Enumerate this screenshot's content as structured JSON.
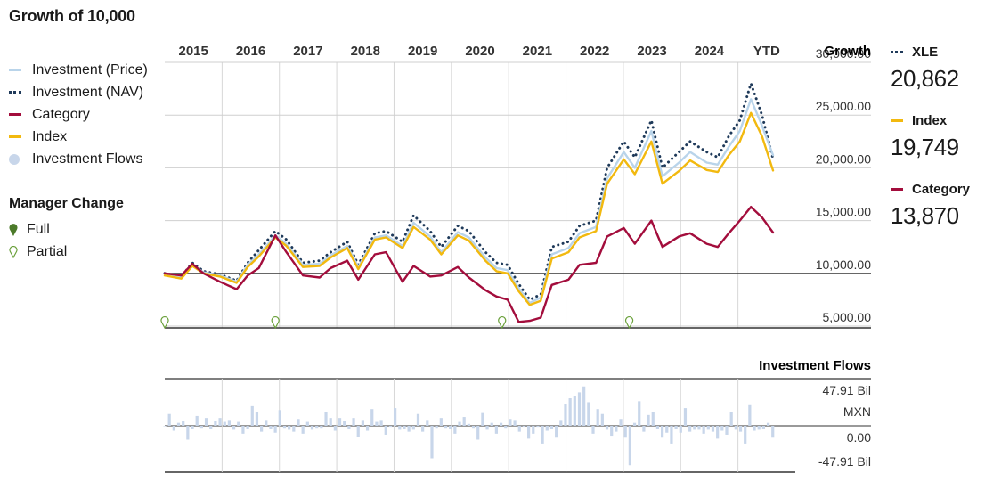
{
  "title": "Growth of 10,000",
  "legend": {
    "items": [
      {
        "label": "Investment (Price)",
        "style": "line",
        "color": "#b9d4ea"
      },
      {
        "label": "Investment (NAV)",
        "style": "dots",
        "color": "#1f3a5a"
      },
      {
        "label": "Category",
        "style": "line",
        "color": "#a30d3c"
      },
      {
        "label": "Index",
        "style": "line",
        "color": "#f2b90f"
      },
      {
        "label": "Investment Flows",
        "style": "circle",
        "color": "#c8d6ea"
      }
    ]
  },
  "manager_change": {
    "title": "Manager Change",
    "full_label": "Full",
    "partial_label": "Partial",
    "full_color": "#4c7a2a",
    "partial_color": "#6aa03a"
  },
  "right_legend": [
    {
      "name": "XLE",
      "value": "20,862",
      "style": "dots",
      "color": "#1f3a5a"
    },
    {
      "name": "Index",
      "value": "19,749",
      "style": "line",
      "color": "#f2b90f"
    },
    {
      "name": "Category",
      "value": "13,870",
      "style": "line",
      "color": "#a30d3c"
    }
  ],
  "chart_data": [
    {
      "type": "line",
      "title": "Growth",
      "x_range": [
        2014.0,
        2025.0
      ],
      "x_ticks": [
        "2015",
        "2016",
        "2017",
        "2018",
        "2019",
        "2020",
        "2021",
        "2022",
        "2023",
        "2024",
        "YTD"
      ],
      "y_ticks": [
        "30,000.00",
        "25,000.00",
        "20,000.00",
        "15,000.00",
        "10,000.00",
        "5,000.00"
      ],
      "y_tick_values": [
        30000,
        25000,
        20000,
        15000,
        10000,
        5000
      ],
      "ylim": [
        5000,
        30000
      ],
      "baseline": 10000,
      "grid": true,
      "x": [
        2014.0,
        2014.3,
        2014.5,
        2014.7,
        2015.0,
        2015.3,
        2015.5,
        2015.7,
        2016.0,
        2016.2,
        2016.5,
        2016.8,
        2017.0,
        2017.3,
        2017.5,
        2017.8,
        2018.0,
        2018.3,
        2018.5,
        2018.8,
        2019.0,
        2019.3,
        2019.5,
        2019.8,
        2020.0,
        2020.2,
        2020.4,
        2020.6,
        2020.8,
        2021.0,
        2021.3,
        2021.5,
        2021.8,
        2022.0,
        2022.3,
        2022.5,
        2022.8,
        2023.0,
        2023.3,
        2023.5,
        2023.8,
        2024.0,
        2024.2,
        2024.4,
        2024.6,
        2024.8,
        2025.0
      ],
      "series": [
        {
          "name": "Investment (NAV)",
          "color": "#1f3a5a",
          "style": "dots",
          "values": [
            10000,
            9700,
            11000,
            10200,
            9900,
            9300,
            11000,
            12200,
            14000,
            13200,
            11000,
            11200,
            12000,
            13000,
            10800,
            13800,
            14000,
            13000,
            15500,
            14000,
            12500,
            14500,
            14000,
            12000,
            11000,
            10800,
            9000,
            7500,
            8000,
            12500,
            13000,
            14500,
            15000,
            20000,
            22500,
            21000,
            24500,
            20000,
            21500,
            22500,
            21500,
            21000,
            23000,
            24500,
            28000,
            25000,
            20862
          ],
          "hover": false
        },
        {
          "name": "Investment (Price)",
          "color": "#b9d4ea",
          "style": "line",
          "values": [
            9900,
            9600,
            10800,
            10100,
            9800,
            9200,
            10800,
            11800,
            13600,
            12800,
            10800,
            10900,
            11700,
            12600,
            10600,
            13400,
            13600,
            12600,
            14800,
            13500,
            12000,
            13900,
            13400,
            11500,
            10500,
            10300,
            8600,
            7200,
            7700,
            11800,
            12400,
            13800,
            14400,
            19000,
            21500,
            20000,
            23500,
            19200,
            20500,
            21500,
            20500,
            20300,
            22000,
            23500,
            26500,
            24000,
            21200
          ],
          "hover": false
        },
        {
          "name": "Index",
          "color": "#f2b90f",
          "style": "line",
          "values": [
            9800,
            9500,
            10700,
            10000,
            9700,
            9100,
            10600,
            11600,
            13400,
            12600,
            10600,
            10700,
            11500,
            12400,
            10400,
            13200,
            13400,
            12400,
            14400,
            13200,
            11800,
            13600,
            13100,
            11200,
            10200,
            10000,
            8300,
            7000,
            7400,
            11400,
            12000,
            13400,
            14000,
            18500,
            20800,
            19400,
            22500,
            18500,
            19700,
            20700,
            19800,
            19600,
            21200,
            22500,
            25200,
            23000,
            19749
          ],
          "hover": false
        },
        {
          "name": "Category",
          "color": "#a30d3c",
          "style": "line",
          "values": [
            10000,
            9800,
            10900,
            10000,
            9200,
            8500,
            9800,
            10500,
            13600,
            12000,
            9800,
            9600,
            10500,
            11200,
            9400,
            11800,
            12000,
            9200,
            10700,
            9700,
            9800,
            10600,
            9600,
            8400,
            7800,
            7500,
            5400,
            5500,
            5800,
            8900,
            9400,
            10800,
            11000,
            13500,
            14300,
            12800,
            15000,
            12500,
            13500,
            13800,
            12800,
            12500,
            13800,
            15000,
            16300,
            15300,
            13870
          ],
          "hover": false
        }
      ],
      "manager_changes": [
        {
          "x": 2014.0,
          "type": "partial"
        },
        {
          "x": 2016.0,
          "type": "partial"
        },
        {
          "x": 2020.1,
          "type": "partial"
        },
        {
          "x": 2022.4,
          "type": "partial"
        }
      ]
    },
    {
      "type": "bar",
      "title": "Investment Flows",
      "unit": "MXN",
      "y_ticks": [
        "47.91 Bil",
        "0.00",
        "-47.91 Bil"
      ],
      "ylim": [
        -47.91,
        47.91
      ],
      "x_range": [
        2014.0,
        2025.0
      ],
      "x_start": 2014.0,
      "x_step": 0.0833,
      "values": [
        0,
        12,
        -5,
        3,
        5,
        -14,
        -3,
        10,
        -2,
        8,
        -3,
        5,
        8,
        4,
        6,
        -4,
        4,
        -8,
        -3,
        20,
        14,
        -6,
        6,
        -3,
        -7,
        16,
        -2,
        -4,
        -6,
        7,
        -8,
        4,
        -4,
        -2,
        -2,
        14,
        8,
        -5,
        8,
        5,
        -3,
        8,
        -11,
        6,
        -5,
        17,
        4,
        6,
        -9,
        -1,
        18,
        -4,
        -3,
        -6,
        -4,
        12,
        -6,
        6,
        -33,
        -2,
        8,
        -2,
        -3,
        -8,
        4,
        9,
        2,
        -2,
        -14,
        13,
        -4,
        3,
        -8,
        3,
        -2,
        7,
        6,
        -6,
        -1,
        -13,
        -8,
        -1,
        -18,
        -5,
        -3,
        -12,
        6,
        22,
        28,
        30,
        34,
        40,
        24,
        -8,
        17,
        12,
        -4,
        -10,
        -6,
        7,
        -12,
        -40,
        3,
        25,
        -6,
        11,
        14,
        -3,
        -12,
        -7,
        -18,
        -3,
        -7,
        18,
        -6,
        -4,
        -4,
        -8,
        -4,
        -6,
        -13,
        -5,
        -9,
        14,
        -4,
        -6,
        -18,
        21,
        -5,
        -4,
        -3,
        3,
        -12,
        -33,
        9,
        -3,
        -3,
        -4,
        -9,
        -12,
        -50,
        -10,
        -4,
        -3,
        -7
      ]
    }
  ]
}
